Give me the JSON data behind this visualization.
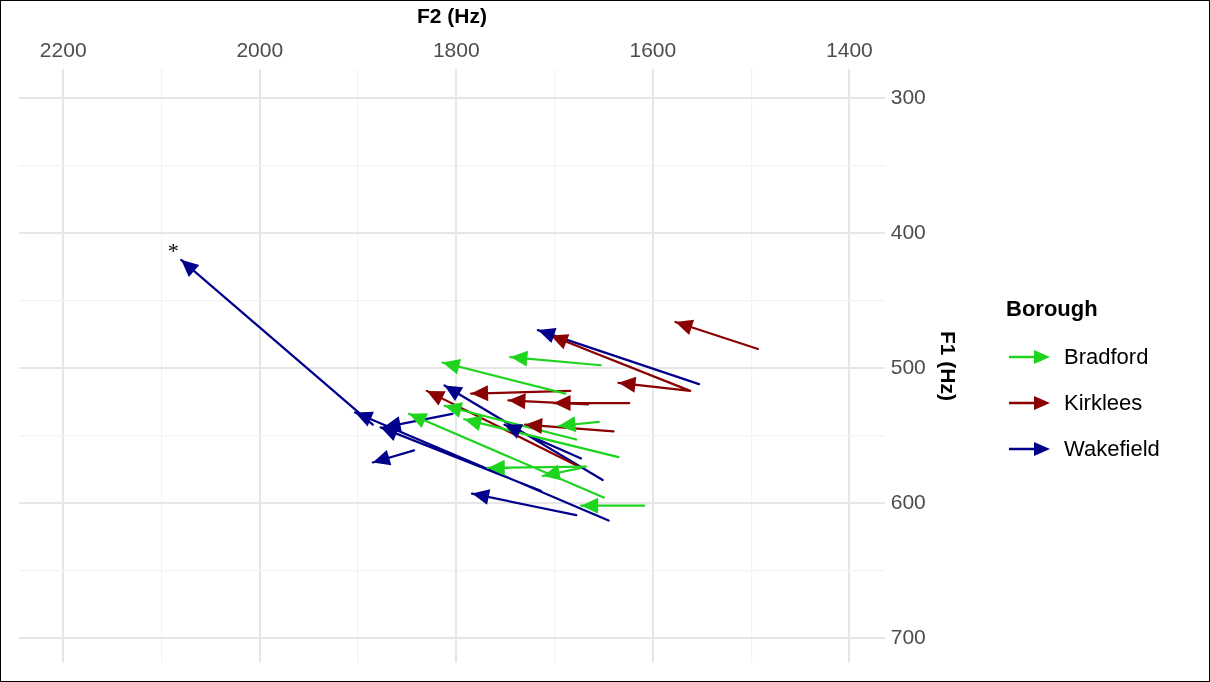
{
  "chart_data": {
    "type": "line",
    "xlabel": "F2 (Hz)",
    "ylabel": "F1 (Hz)",
    "legend_title": "Borough",
    "legend": "right",
    "grid": true,
    "marker": "none",
    "line_style": "solid",
    "xlim": [
      2245,
      1364
    ],
    "ylim": [
      718,
      279
    ],
    "xticks": [
      2200,
      {
        "value": 2100,
        "label": null
      },
      2000,
      {
        "value": 1900,
        "label": null
      },
      1800,
      {
        "value": 1700,
        "label": null
      },
      1600,
      {
        "value": 1500,
        "label": null
      },
      1400
    ],
    "yticks": [
      300,
      {
        "value": 350,
        "label": null
      },
      400,
      {
        "value": 450,
        "label": null
      },
      500,
      {
        "value": 550,
        "label": null
      },
      600,
      {
        "value": 650,
        "label": null
      },
      700
    ],
    "series": [
      {
        "name": "Bradford",
        "color": "#1ed41e",
        "x": [
          1653,
          1745,
          null,
          1689,
          1814,
          null,
          1655,
          1696,
          null,
          1650,
          1848,
          null,
          1609,
          1673,
          null,
          1668,
          1768,
          null,
          1673,
          1712,
          null,
          1635,
          1792,
          null,
          1678,
          1812
        ],
        "values": [
          498,
          492,
          null,
          519,
          496,
          null,
          540,
          543,
          null,
          596,
          534,
          null,
          602,
          602,
          null,
          573,
          574,
          null,
          574,
          580,
          null,
          566,
          538,
          null,
          553,
          528
        ]
      },
      {
        "name": "Kirklees",
        "color": "#8b0000",
        "x": [
          1493,
          1577,
          null,
          1562,
          1635,
          null,
          1562,
          1704,
          null,
          1624,
          1701,
          null,
          1684,
          1785,
          null,
          1666,
          1747,
          null,
          1640,
          1730,
          null,
          1678,
          1830
        ],
        "values": [
          486,
          466,
          null,
          517,
          511,
          null,
          517,
          476,
          null,
          526,
          526,
          null,
          517,
          519,
          null,
          527,
          524,
          null,
          547,
          542,
          null,
          572,
          517
        ]
      },
      {
        "name": "Wakefield",
        "color": "#00008b",
        "x": [
          1885,
          2080,
          null,
          1553,
          1717,
          null,
          1804,
          1874,
          null,
          1843,
          1885,
          null,
          1645,
          1903,
          null,
          1714,
          1877,
          null,
          1651,
          1812,
          null,
          1673,
          1751,
          null,
          1678,
          1784
        ],
        "values": [
          542,
          420,
          null,
          512,
          472,
          null,
          534,
          544,
          null,
          561,
          570,
          null,
          613,
          533,
          null,
          591,
          544,
          null,
          583,
          513,
          null,
          567,
          542,
          null,
          609,
          593
        ]
      }
    ],
    "annotations": [
      {
        "text": "*",
        "x": 2080,
        "y": 420
      }
    ]
  }
}
